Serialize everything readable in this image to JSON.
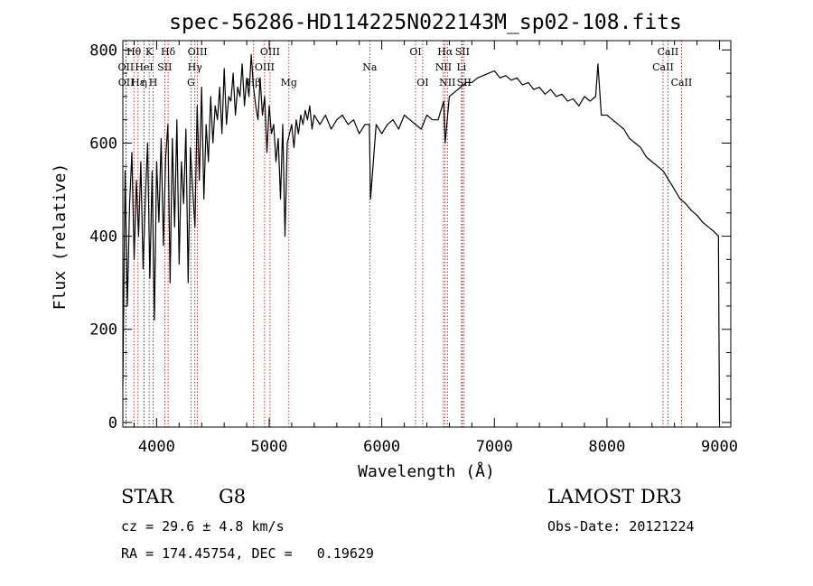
{
  "chart_data": {
    "type": "line",
    "title": "spec-56286-HD114225N022143M_sp02-108.fits",
    "xlabel": "Wavelength (Å)",
    "ylabel": "Flux (relative)",
    "xlim": [
      3700,
      9100
    ],
    "ylim": [
      -10,
      820
    ],
    "xticks": [
      4000,
      5000,
      6000,
      7000,
      8000,
      9000
    ],
    "yticks": [
      0,
      200,
      400,
      600,
      800
    ],
    "series": [
      {
        "name": "flux",
        "x": [
          3700,
          3720,
          3740,
          3760,
          3780,
          3800,
          3820,
          3840,
          3860,
          3880,
          3900,
          3920,
          3940,
          3960,
          3980,
          4000,
          4020,
          4040,
          4060,
          4080,
          4100,
          4120,
          4140,
          4160,
          4180,
          4200,
          4220,
          4240,
          4260,
          4280,
          4300,
          4320,
          4340,
          4360,
          4380,
          4400,
          4420,
          4440,
          4460,
          4480,
          4500,
          4520,
          4540,
          4560,
          4580,
          4600,
          4620,
          4640,
          4660,
          4680,
          4700,
          4720,
          4740,
          4760,
          4780,
          4800,
          4820,
          4840,
          4860,
          4880,
          4900,
          4920,
          4940,
          4960,
          4980,
          5000,
          5020,
          5040,
          5060,
          5080,
          5100,
          5120,
          5140,
          5160,
          5180,
          5200,
          5220,
          5240,
          5260,
          5280,
          5300,
          5320,
          5340,
          5360,
          5380,
          5400,
          5450,
          5500,
          5550,
          5600,
          5650,
          5700,
          5750,
          5800,
          5850,
          5890,
          5900,
          5950,
          6000,
          6050,
          6100,
          6150,
          6200,
          6250,
          6300,
          6350,
          6400,
          6450,
          6500,
          6550,
          6563,
          6600,
          6650,
          6700,
          6750,
          6800,
          6850,
          6900,
          6950,
          7000,
          7050,
          7100,
          7150,
          7200,
          7250,
          7300,
          7350,
          7400,
          7450,
          7500,
          7550,
          7600,
          7650,
          7700,
          7750,
          7800,
          7850,
          7900,
          7920,
          7950,
          8000,
          8050,
          8100,
          8150,
          8200,
          8250,
          8300,
          8350,
          8400,
          8450,
          8500,
          8550,
          8600,
          8650,
          8700,
          8750,
          8800,
          8850,
          8900,
          8950,
          8990,
          9000
        ],
        "y": [
          80,
          540,
          250,
          470,
          580,
          350,
          520,
          400,
          560,
          330,
          480,
          600,
          310,
          540,
          220,
          560,
          430,
          610,
          380,
          570,
          640,
          300,
          610,
          420,
          650,
          340,
          560,
          470,
          630,
          300,
          590,
          500,
          420,
          680,
          520,
          720,
          480,
          640,
          560,
          700,
          600,
          680,
          650,
          720,
          620,
          760,
          640,
          700,
          690,
          750,
          660,
          720,
          700,
          770,
          680,
          740,
          700,
          790,
          720,
          680,
          650,
          740,
          660,
          700,
          580,
          680,
          620,
          640,
          560,
          610,
          480,
          640,
          400,
          600,
          620,
          640,
          590,
          650,
          620,
          660,
          640,
          670,
          650,
          680,
          630,
          660,
          640,
          660,
          630,
          650,
          660,
          640,
          650,
          620,
          640,
          640,
          480,
          640,
          620,
          640,
          650,
          630,
          660,
          650,
          640,
          630,
          660,
          650,
          650,
          690,
          600,
          700,
          710,
          720,
          730,
          730,
          740,
          745,
          750,
          755,
          740,
          745,
          735,
          740,
          725,
          730,
          715,
          720,
          705,
          715,
          700,
          705,
          690,
          695,
          680,
          700,
          690,
          700,
          770,
          660,
          660,
          650,
          640,
          630,
          610,
          600,
          590,
          570,
          560,
          550,
          540,
          520,
          500,
          480,
          470,
          455,
          445,
          430,
          420,
          410,
          400,
          0
        ]
      }
    ],
    "line_markers": [
      {
        "label": "Hθ",
        "x": 3798,
        "row": 1
      },
      {
        "label": "OII",
        "x": 3727,
        "row": 2
      },
      {
        "label": "OII",
        "x": 3729,
        "row": 3
      },
      {
        "label": "Hε",
        "x": 3835,
        "row": 3
      },
      {
        "label": "HeI",
        "x": 3889,
        "row": 2
      },
      {
        "label": "η",
        "x": 3889,
        "row": 3
      },
      {
        "label": "K",
        "x": 3934,
        "row": 1
      },
      {
        "label": "H",
        "x": 3969,
        "row": 3
      },
      {
        "label": "SII",
        "x": 4072,
        "row": 2
      },
      {
        "label": "Hδ",
        "x": 4102,
        "row": 1
      },
      {
        "label": "OIII",
        "x": 4363,
        "row": 1
      },
      {
        "label": "Hγ",
        "x": 4340,
        "row": 2
      },
      {
        "label": "G",
        "x": 4305,
        "row": 3
      },
      {
        "label": "Hβ",
        "x": 4861,
        "row": 3
      },
      {
        "label": "OIII",
        "x": 5007,
        "row": 1
      },
      {
        "label": "OIII",
        "x": 4959,
        "row": 2
      },
      {
        "label": "Mg",
        "x": 5175,
        "row": 3
      },
      {
        "label": "Na",
        "x": 5893,
        "row": 2
      },
      {
        "label": "OI",
        "x": 6300,
        "row": 1
      },
      {
        "label": "OI",
        "x": 6363,
        "row": 3
      },
      {
        "label": "Hα",
        "x": 6563,
        "row": 1
      },
      {
        "label": "SII",
        "x": 6716,
        "row": 1
      },
      {
        "label": "NII",
        "x": 6548,
        "row": 2
      },
      {
        "label": "Li",
        "x": 6708,
        "row": 2
      },
      {
        "label": "NII",
        "x": 6583,
        "row": 3
      },
      {
        "label": "SII",
        "x": 6731,
        "row": 3
      },
      {
        "label": "CaII",
        "x": 8542,
        "row": 1
      },
      {
        "label": "CaII",
        "x": 8498,
        "row": 2
      },
      {
        "label": "CaII",
        "x": 8662,
        "row": 3
      }
    ]
  },
  "info": {
    "class": "STAR",
    "subclass": "G8",
    "cz": "cz = 29.6 ± 4.8 km/s",
    "coords": "RA = 174.45754, DEC =   0.19629",
    "survey": "LAMOST DR3",
    "obs_date": "Obs-Date: 20121224"
  }
}
